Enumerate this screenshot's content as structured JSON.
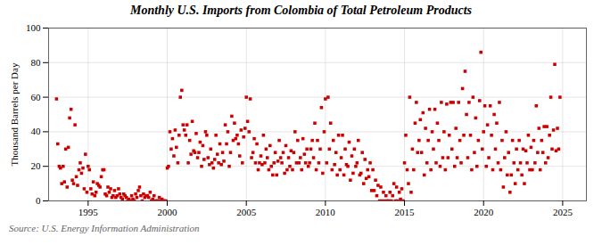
{
  "chart_data": {
    "type": "scatter",
    "title": "Monthly U.S. Imports from Colombia of Total Petroleum Products",
    "ylabel": "Thousand Barrels per Day",
    "source": "Source: U.S. Energy Information Administration",
    "color": "#cc0000",
    "marker": "square",
    "grid": true,
    "xlim": [
      1992.5,
      2026.5
    ],
    "ylim": [
      0,
      100
    ],
    "xticks": [
      1995,
      2000,
      2005,
      2010,
      2015,
      2020,
      2025
    ],
    "yticks": [
      0,
      20,
      40,
      60,
      80,
      100
    ],
    "x": [
      1993.0,
      1993.08,
      1993.17,
      1993.25,
      1993.33,
      1993.42,
      1993.5,
      1993.58,
      1993.67,
      1993.75,
      1993.83,
      1993.92,
      1994.0,
      1994.08,
      1994.17,
      1994.25,
      1994.33,
      1994.42,
      1994.5,
      1994.58,
      1994.67,
      1994.75,
      1994.83,
      1994.92,
      1995.0,
      1995.08,
      1995.17,
      1995.25,
      1995.33,
      1995.42,
      1995.5,
      1995.58,
      1995.67,
      1995.75,
      1995.83,
      1995.92,
      1996.0,
      1996.08,
      1996.17,
      1996.25,
      1996.33,
      1996.42,
      1996.5,
      1996.58,
      1996.67,
      1996.75,
      1996.83,
      1996.92,
      1997.0,
      1997.08,
      1997.17,
      1997.25,
      1997.33,
      1997.42,
      1997.5,
      1997.58,
      1997.67,
      1997.75,
      1997.83,
      1997.92,
      1998.0,
      1998.08,
      1998.17,
      1998.25,
      1998.33,
      1998.42,
      1998.5,
      1998.58,
      1998.67,
      1998.75,
      1998.83,
      1998.92,
      1999.0,
      1999.08,
      1999.17,
      1999.25,
      1999.33,
      1999.42,
      1999.5,
      1999.58,
      1999.67,
      1999.75,
      1999.83,
      1999.92,
      2000.0,
      2000.08,
      2000.17,
      2000.25,
      2000.33,
      2000.42,
      2000.5,
      2000.58,
      2000.67,
      2000.75,
      2000.83,
      2000.92,
      2001.0,
      2001.08,
      2001.17,
      2001.25,
      2001.33,
      2001.42,
      2001.5,
      2001.58,
      2001.67,
      2001.75,
      2001.83,
      2001.92,
      2002.0,
      2002.08,
      2002.17,
      2002.25,
      2002.33,
      2002.42,
      2002.5,
      2002.58,
      2002.67,
      2002.75,
      2002.83,
      2002.92,
      2003.0,
      2003.08,
      2003.17,
      2003.25,
      2003.33,
      2003.42,
      2003.5,
      2003.58,
      2003.67,
      2003.75,
      2003.83,
      2003.92,
      2004.0,
      2004.08,
      2004.17,
      2004.25,
      2004.33,
      2004.42,
      2004.5,
      2004.58,
      2004.67,
      2004.75,
      2004.83,
      2004.92,
      2005.0,
      2005.08,
      2005.17,
      2005.25,
      2005.33,
      2005.42,
      2005.5,
      2005.58,
      2005.67,
      2005.75,
      2005.83,
      2005.92,
      2006.0,
      2006.08,
      2006.17,
      2006.25,
      2006.33,
      2006.42,
      2006.5,
      2006.58,
      2006.67,
      2006.75,
      2006.83,
      2006.92,
      2007.0,
      2007.08,
      2007.17,
      2007.25,
      2007.33,
      2007.42,
      2007.5,
      2007.58,
      2007.67,
      2007.75,
      2007.83,
      2007.92,
      2008.0,
      2008.08,
      2008.17,
      2008.25,
      2008.33,
      2008.42,
      2008.5,
      2008.58,
      2008.67,
      2008.75,
      2008.83,
      2008.92,
      2009.0,
      2009.08,
      2009.17,
      2009.25,
      2009.33,
      2009.42,
      2009.5,
      2009.58,
      2009.67,
      2009.75,
      2009.83,
      2009.92,
      2010.0,
      2010.08,
      2010.17,
      2010.25,
      2010.33,
      2010.42,
      2010.5,
      2010.58,
      2010.67,
      2010.75,
      2010.83,
      2010.92,
      2011.0,
      2011.08,
      2011.17,
      2011.25,
      2011.33,
      2011.42,
      2011.5,
      2011.58,
      2011.67,
      2011.75,
      2011.83,
      2011.92,
      2012.0,
      2012.08,
      2012.17,
      2012.25,
      2012.33,
      2012.42,
      2012.5,
      2012.58,
      2012.67,
      2012.75,
      2012.83,
      2012.92,
      2013.0,
      2013.08,
      2013.17,
      2013.25,
      2013.33,
      2013.42,
      2013.5,
      2013.58,
      2013.67,
      2013.75,
      2013.83,
      2013.92,
      2014.0,
      2014.08,
      2014.17,
      2014.25,
      2014.33,
      2014.42,
      2014.5,
      2014.58,
      2014.67,
      2014.75,
      2014.83,
      2014.92,
      2015.0,
      2015.08,
      2015.17,
      2015.25,
      2015.33,
      2015.42,
      2015.5,
      2015.58,
      2015.67,
      2015.75,
      2015.83,
      2015.92,
      2016.0,
      2016.08,
      2016.17,
      2016.25,
      2016.33,
      2016.42,
      2016.5,
      2016.58,
      2016.67,
      2016.75,
      2016.83,
      2016.92,
      2017.0,
      2017.08,
      2017.17,
      2017.25,
      2017.33,
      2017.42,
      2017.5,
      2017.58,
      2017.67,
      2017.75,
      2017.83,
      2017.92,
      2018.0,
      2018.08,
      2018.17,
      2018.25,
      2018.33,
      2018.42,
      2018.5,
      2018.58,
      2018.67,
      2018.75,
      2018.83,
      2018.92,
      2019.0,
      2019.08,
      2019.17,
      2019.25,
      2019.33,
      2019.42,
      2019.5,
      2019.58,
      2019.67,
      2019.75,
      2019.83,
      2019.92,
      2020.0,
      2020.08,
      2020.17,
      2020.25,
      2020.33,
      2020.42,
      2020.5,
      2020.58,
      2020.67,
      2020.75,
      2020.83,
      2020.92,
      2021.0,
      2021.08,
      2021.17,
      2021.25,
      2021.33,
      2021.42,
      2021.5,
      2021.58,
      2021.67,
      2021.75,
      2021.83,
      2021.92,
      2022.0,
      2022.08,
      2022.17,
      2022.25,
      2022.33,
      2022.42,
      2022.5,
      2022.58,
      2022.67,
      2022.75,
      2022.83,
      2022.92,
      2023.0,
      2023.08,
      2023.17,
      2023.25,
      2023.33,
      2023.42,
      2023.5,
      2023.58,
      2023.67,
      2023.75,
      2023.83,
      2023.92,
      2024.0,
      2024.08,
      2024.17,
      2024.25,
      2024.33,
      2024.42,
      2024.5,
      2024.58,
      2024.67,
      2024.75,
      2024.83
    ],
    "values": [
      59,
      33,
      20,
      19,
      10,
      20,
      11,
      30,
      8,
      31,
      48,
      53,
      12,
      10,
      44,
      14,
      9,
      18,
      22,
      16,
      19,
      7,
      27,
      5,
      20,
      18,
      7,
      4,
      11,
      3,
      5,
      10,
      9,
      8,
      14,
      18,
      18,
      4,
      3,
      8,
      5,
      7,
      2,
      3,
      6,
      2,
      3,
      7,
      4,
      2,
      1,
      4,
      3,
      2,
      0,
      1,
      0,
      3,
      1,
      0,
      4,
      2,
      6,
      8,
      3,
      0,
      4,
      2,
      3,
      3,
      2,
      5,
      0,
      1,
      3,
      0,
      0,
      0,
      2,
      0,
      1,
      0,
      0,
      0,
      19,
      20,
      40,
      30,
      36,
      26,
      41,
      31,
      22,
      38,
      60,
      64,
      44,
      41,
      38,
      44,
      22,
      35,
      27,
      46,
      29,
      28,
      39,
      25,
      28,
      34,
      20,
      32,
      24,
      40,
      38,
      25,
      21,
      30,
      22,
      19,
      24,
      38,
      27,
      22,
      33,
      21,
      28,
      23,
      44,
      33,
      40,
      20,
      28,
      49,
      35,
      45,
      36,
      38,
      33,
      26,
      41,
      22,
      37,
      42,
      60,
      46,
      40,
      59,
      25,
      28,
      36,
      22,
      33,
      18,
      22,
      26,
      21,
      38,
      22,
      30,
      25,
      18,
      32,
      20,
      15,
      22,
      28,
      15,
      23,
      35,
      25,
      22,
      28,
      16,
      32,
      18,
      25,
      20,
      29,
      18,
      28,
      40,
      22,
      35,
      22,
      25,
      18,
      36,
      27,
      22,
      30,
      20,
      22,
      30,
      35,
      25,
      45,
      18,
      35,
      22,
      30,
      54,
      16,
      40,
      59,
      22,
      60,
      30,
      45,
      18,
      35,
      21,
      28,
      15,
      38,
      18,
      25,
      38,
      15,
      30,
      21,
      20,
      34,
      12,
      26,
      16,
      30,
      20,
      22,
      35,
      15,
      16,
      28,
      10,
      24,
      13,
      18,
      14,
      22,
      6,
      18,
      6,
      12,
      3,
      9,
      0,
      8,
      0,
      5,
      0,
      3,
      0,
      0,
      5,
      0,
      3,
      10,
      0,
      8,
      0,
      5,
      1,
      7,
      0,
      22,
      38,
      18,
      10,
      60,
      5,
      30,
      18,
      45,
      57,
      28,
      35,
      47,
      28,
      51,
      15,
      42,
      22,
      35,
      53,
      18,
      40,
      30,
      53,
      22,
      45,
      35,
      20,
      57,
      25,
      40,
      18,
      56,
      25,
      38,
      57,
      30,
      57,
      20,
      42,
      25,
      57,
      35,
      22,
      65,
      38,
      75,
      50,
      25,
      57,
      38,
      18,
      60,
      28,
      48,
      20,
      35,
      58,
      86,
      30,
      40,
      55,
      20,
      44,
      25,
      55,
      38,
      18,
      50,
      30,
      45,
      22,
      57,
      18,
      35,
      8,
      25,
      40,
      15,
      28,
      5,
      15,
      35,
      22,
      10,
      30,
      18,
      35,
      22,
      15,
      30,
      10,
      29,
      22,
      38,
      18,
      31,
      18,
      35,
      22,
      55,
      28,
      42,
      18,
      35,
      28,
      43,
      22,
      43,
      25,
      38,
      60,
      30,
      41,
      79,
      29,
      42,
      30,
      60
    ]
  }
}
